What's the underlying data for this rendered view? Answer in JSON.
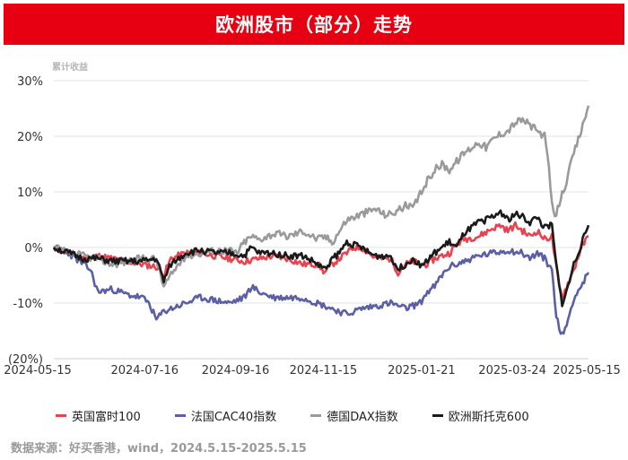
{
  "header": {
    "title": "欧洲股市（部分）走势"
  },
  "source": "数据来源：好买香港，wind，2024.5.15-2025.5.15",
  "chart_data": {
    "type": "line",
    "ylabel": "累计收益",
    "ylim": [
      -20,
      30
    ],
    "yticks": [
      -20,
      -10,
      0,
      10,
      20,
      30
    ],
    "ytick_labels": [
      "(20%)",
      "-10%",
      "0%",
      "10%",
      "20%",
      "30%"
    ],
    "xlim": [
      0,
      365
    ],
    "xticks": [
      0,
      62,
      124,
      184,
      251,
      313,
      365
    ],
    "xtick_labels": [
      "2024-05-15",
      "2024-07-16",
      "2024-09-16",
      "2024-11-15",
      "2025-01-21",
      "2025-03-24",
      "2025-05-15"
    ],
    "grid": "horizontal",
    "legend_position": "bottom",
    "series": [
      {
        "name": "英国富时100",
        "color": "#e8434f",
        "anchors": [
          [
            0,
            0
          ],
          [
            10,
            -1
          ],
          [
            20,
            -2
          ],
          [
            30,
            -1.5
          ],
          [
            40,
            -2
          ],
          [
            50,
            -2.5
          ],
          [
            60,
            -3
          ],
          [
            70,
            -3.5
          ],
          [
            75,
            -5
          ],
          [
            80,
            -2
          ],
          [
            90,
            -1
          ],
          [
            100,
            -1
          ],
          [
            110,
            -1.5
          ],
          [
            120,
            -2
          ],
          [
            130,
            -2.5
          ],
          [
            140,
            -2
          ],
          [
            150,
            -1.5
          ],
          [
            160,
            -2
          ],
          [
            170,
            -3
          ],
          [
            180,
            -3
          ],
          [
            185,
            -4.5
          ],
          [
            190,
            -3
          ],
          [
            195,
            -2
          ],
          [
            200,
            -1
          ],
          [
            205,
            0
          ],
          [
            210,
            0
          ],
          [
            215,
            -1
          ],
          [
            220,
            -2
          ],
          [
            230,
            -2
          ],
          [
            235,
            -4.5
          ],
          [
            240,
            -3
          ],
          [
            245,
            -2.5
          ],
          [
            250,
            -3
          ],
          [
            255,
            -3
          ],
          [
            260,
            -2
          ],
          [
            265,
            -1.5
          ],
          [
            270,
            -1
          ],
          [
            275,
            0.5
          ],
          [
            280,
            1.5
          ],
          [
            290,
            2
          ],
          [
            300,
            3.5
          ],
          [
            305,
            4
          ],
          [
            310,
            3
          ],
          [
            315,
            4
          ],
          [
            320,
            3
          ],
          [
            325,
            2
          ],
          [
            330,
            3
          ],
          [
            335,
            1.5
          ],
          [
            340,
            2
          ],
          [
            342,
            -2
          ],
          [
            345,
            -7
          ],
          [
            347,
            -9
          ],
          [
            350,
            -7
          ],
          [
            355,
            -4
          ],
          [
            360,
            0
          ],
          [
            365,
            2
          ]
        ],
        "noise": [
          0.6,
          11
        ]
      },
      {
        "name": "法国CAC40指数",
        "color": "#5b5fa6",
        "anchors": [
          [
            0,
            0
          ],
          [
            10,
            -1
          ],
          [
            20,
            -3
          ],
          [
            25,
            -4
          ],
          [
            30,
            -8
          ],
          [
            40,
            -7.5
          ],
          [
            50,
            -8.5
          ],
          [
            60,
            -9
          ],
          [
            65,
            -10
          ],
          [
            70,
            -13
          ],
          [
            75,
            -11.5
          ],
          [
            80,
            -11
          ],
          [
            90,
            -10
          ],
          [
            100,
            -9
          ],
          [
            110,
            -9.5
          ],
          [
            120,
            -10
          ],
          [
            130,
            -9
          ],
          [
            135,
            -7
          ],
          [
            140,
            -8
          ],
          [
            150,
            -9
          ],
          [
            160,
            -9
          ],
          [
            170,
            -9
          ],
          [
            180,
            -10
          ],
          [
            190,
            -11
          ],
          [
            200,
            -12
          ],
          [
            210,
            -11
          ],
          [
            220,
            -10.5
          ],
          [
            230,
            -10
          ],
          [
            240,
            -11
          ],
          [
            250,
            -10
          ],
          [
            255,
            -8
          ],
          [
            260,
            -7
          ],
          [
            265,
            -5
          ],
          [
            270,
            -3.5
          ],
          [
            280,
            -2.5
          ],
          [
            290,
            -1.5
          ],
          [
            300,
            -1
          ],
          [
            310,
            -0.5
          ],
          [
            320,
            -1
          ],
          [
            325,
            -2
          ],
          [
            330,
            -1
          ],
          [
            335,
            -2
          ],
          [
            340,
            -4
          ],
          [
            343,
            -12
          ],
          [
            346,
            -16
          ],
          [
            350,
            -14
          ],
          [
            355,
            -9
          ],
          [
            360,
            -7
          ],
          [
            365,
            -4.5
          ]
        ],
        "noise": [
          0.6,
          23
        ]
      },
      {
        "name": "德国DAX指数",
        "color": "#9a9a9a",
        "anchors": [
          [
            0,
            0
          ],
          [
            10,
            -1
          ],
          [
            20,
            -1.5
          ],
          [
            30,
            -2
          ],
          [
            40,
            -3
          ],
          [
            50,
            -2.5
          ],
          [
            60,
            -2
          ],
          [
            70,
            -2
          ],
          [
            75,
            -7
          ],
          [
            80,
            -5
          ],
          [
            85,
            -3
          ],
          [
            90,
            -1.5
          ],
          [
            100,
            -1
          ],
          [
            110,
            -0.5
          ],
          [
            120,
            -0.5
          ],
          [
            125,
            -1
          ],
          [
            130,
            1
          ],
          [
            135,
            2
          ],
          [
            140,
            1.5
          ],
          [
            150,
            2.5
          ],
          [
            160,
            2
          ],
          [
            170,
            3
          ],
          [
            180,
            1.5
          ],
          [
            185,
            2
          ],
          [
            190,
            1
          ],
          [
            195,
            3
          ],
          [
            200,
            5
          ],
          [
            210,
            6
          ],
          [
            220,
            7
          ],
          [
            225,
            6
          ],
          [
            230,
            6
          ],
          [
            240,
            7.5
          ],
          [
            245,
            7
          ],
          [
            250,
            9.5
          ],
          [
            255,
            12
          ],
          [
            260,
            14
          ],
          [
            265,
            15
          ],
          [
            270,
            14
          ],
          [
            275,
            15.5
          ],
          [
            280,
            17
          ],
          [
            285,
            18
          ],
          [
            290,
            19
          ],
          [
            295,
            18
          ],
          [
            300,
            19.5
          ],
          [
            305,
            20.5
          ],
          [
            310,
            21
          ],
          [
            315,
            22.5
          ],
          [
            320,
            23
          ],
          [
            325,
            22
          ],
          [
            330,
            21
          ],
          [
            335,
            20
          ],
          [
            338,
            14
          ],
          [
            340,
            8
          ],
          [
            342,
            5
          ],
          [
            345,
            8
          ],
          [
            350,
            12
          ],
          [
            355,
            17
          ],
          [
            360,
            21
          ],
          [
            365,
            25.5
          ]
        ],
        "noise": [
          0.7,
          37
        ]
      },
      {
        "name": "欧洲斯托克600",
        "color": "#1a1a1a",
        "anchors": [
          [
            0,
            0
          ],
          [
            10,
            -1
          ],
          [
            20,
            -2
          ],
          [
            30,
            -2
          ],
          [
            40,
            -2.5
          ],
          [
            50,
            -2.5
          ],
          [
            60,
            -2.5
          ],
          [
            70,
            -2
          ],
          [
            75,
            -6
          ],
          [
            80,
            -3
          ],
          [
            90,
            -1
          ],
          [
            100,
            -0.5
          ],
          [
            110,
            -1
          ],
          [
            120,
            -1
          ],
          [
            130,
            -1.5
          ],
          [
            135,
            0
          ],
          [
            140,
            -1
          ],
          [
            150,
            -1
          ],
          [
            160,
            -1.5
          ],
          [
            170,
            -1.5
          ],
          [
            180,
            -3
          ],
          [
            185,
            -4
          ],
          [
            190,
            -2
          ],
          [
            195,
            -1
          ],
          [
            200,
            1
          ],
          [
            210,
            0
          ],
          [
            215,
            -1
          ],
          [
            220,
            -1.5
          ],
          [
            230,
            -1.5
          ],
          [
            235,
            -4
          ],
          [
            240,
            -3
          ],
          [
            245,
            -2
          ],
          [
            250,
            -3
          ],
          [
            255,
            -2.5
          ],
          [
            260,
            -1
          ],
          [
            265,
            0
          ],
          [
            270,
            1
          ],
          [
            275,
            0
          ],
          [
            280,
            2.5
          ],
          [
            290,
            4.5
          ],
          [
            300,
            5.5
          ],
          [
            305,
            6.5
          ],
          [
            310,
            5
          ],
          [
            315,
            6
          ],
          [
            320,
            5.5
          ],
          [
            325,
            4.5
          ],
          [
            330,
            5.5
          ],
          [
            335,
            3.5
          ],
          [
            340,
            4
          ],
          [
            342,
            -1
          ],
          [
            345,
            -7
          ],
          [
            347,
            -10
          ],
          [
            350,
            -8
          ],
          [
            355,
            -3
          ],
          [
            360,
            0.5
          ],
          [
            365,
            4
          ]
        ],
        "noise": [
          0.6,
          51
        ]
      }
    ]
  }
}
